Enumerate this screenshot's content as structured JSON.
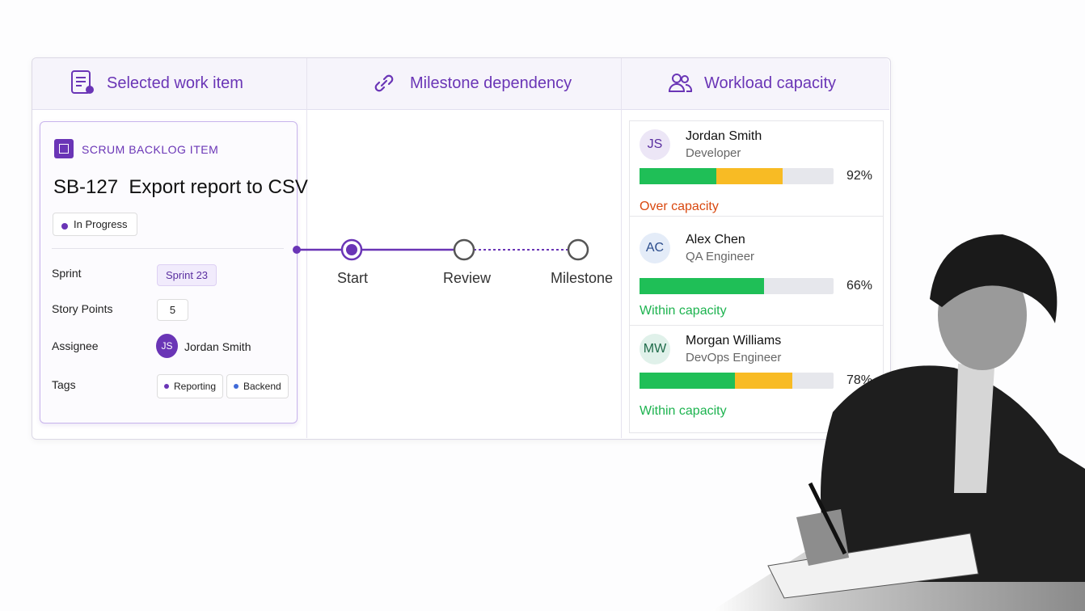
{
  "columns": [
    {
      "title": "Selected work item"
    },
    {
      "title": "Milestone dependency"
    },
    {
      "title": "Workload capacity"
    }
  ],
  "work_item": {
    "type_label": "SCRUM BACKLOG ITEM",
    "id": "SB-127",
    "title": "Export report to CSV",
    "status": "In Progress",
    "fields": [
      {
        "label": "Sprint",
        "value": "Sprint 23"
      },
      {
        "label": "Story Points",
        "value": "5"
      },
      {
        "label": "Assignee",
        "initials": "JS",
        "value": "Jordan Smith"
      },
      {
        "label": "Tags",
        "values": [
          "Reporting",
          "Backend"
        ]
      }
    ]
  },
  "milestones": [
    "Start",
    "Review",
    "Milestone"
  ],
  "people": [
    {
      "initials": "JS",
      "name": "Jordan Smith",
      "role": "Developer",
      "percent": "92%",
      "status": "Over capacity"
    },
    {
      "initials": "AC",
      "name": "Alex Chen",
      "role": "QA Engineer",
      "percent": "66%",
      "status": "Within capacity"
    },
    {
      "initials": "MW",
      "name": "Morgan Williams",
      "role": "DevOps Engineer",
      "percent": "78%",
      "status": "Within capacity"
    }
  ]
}
